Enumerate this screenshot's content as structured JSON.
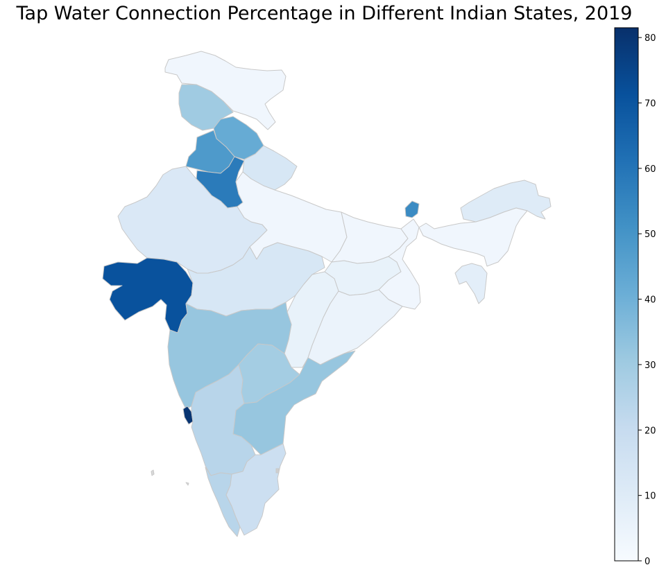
{
  "title": "Tap Water Connection Percentage in Different Indian States, 2019",
  "colorbar": {
    "min": 0,
    "max": 81.5,
    "ticks": [
      0,
      10,
      20,
      30,
      40,
      50,
      60,
      70,
      80
    ],
    "colors": [
      "#f7fbff",
      "#deebf7",
      "#c6dbef",
      "#9ecae1",
      "#6baed6",
      "#4292c6",
      "#2171b5",
      "#08519c",
      "#08306b"
    ]
  },
  "states": [
    {
      "id": "jammu-kashmir",
      "value": 3
    },
    {
      "id": "ladakh-area",
      "value": 30
    },
    {
      "id": "himachal-pradesh",
      "value": 42
    },
    {
      "id": "punjab",
      "value": 48
    },
    {
      "id": "haryana",
      "value": 58
    },
    {
      "id": "uttarakhand",
      "value": 13
    },
    {
      "id": "rajasthan",
      "value": 12
    },
    {
      "id": "uttar-pradesh",
      "value": 3
    },
    {
      "id": "bihar",
      "value": 3
    },
    {
      "id": "sikkim",
      "value": 53
    },
    {
      "id": "gujarat",
      "value": 71
    },
    {
      "id": "madhya-pradesh",
      "value": 13
    },
    {
      "id": "jharkhand",
      "value": 6
    },
    {
      "id": "west-bengal",
      "value": 3
    },
    {
      "id": "chhattisgarh",
      "value": 6
    },
    {
      "id": "odisha",
      "value": 5
    },
    {
      "id": "maharashtra",
      "value": 32
    },
    {
      "id": "telangana",
      "value": 29
    },
    {
      "id": "andhra-pradesh",
      "value": 32
    },
    {
      "id": "goa",
      "value": 80
    },
    {
      "id": "karnataka",
      "value": 24
    },
    {
      "id": "kerala",
      "value": 24
    },
    {
      "id": "tamil-nadu",
      "value": 18
    },
    {
      "id": "northeast-upper",
      "value": 10
    },
    {
      "id": "northeast-lower",
      "value": 3
    },
    {
      "id": "tripura-mizoram",
      "value": 8
    }
  ]
}
